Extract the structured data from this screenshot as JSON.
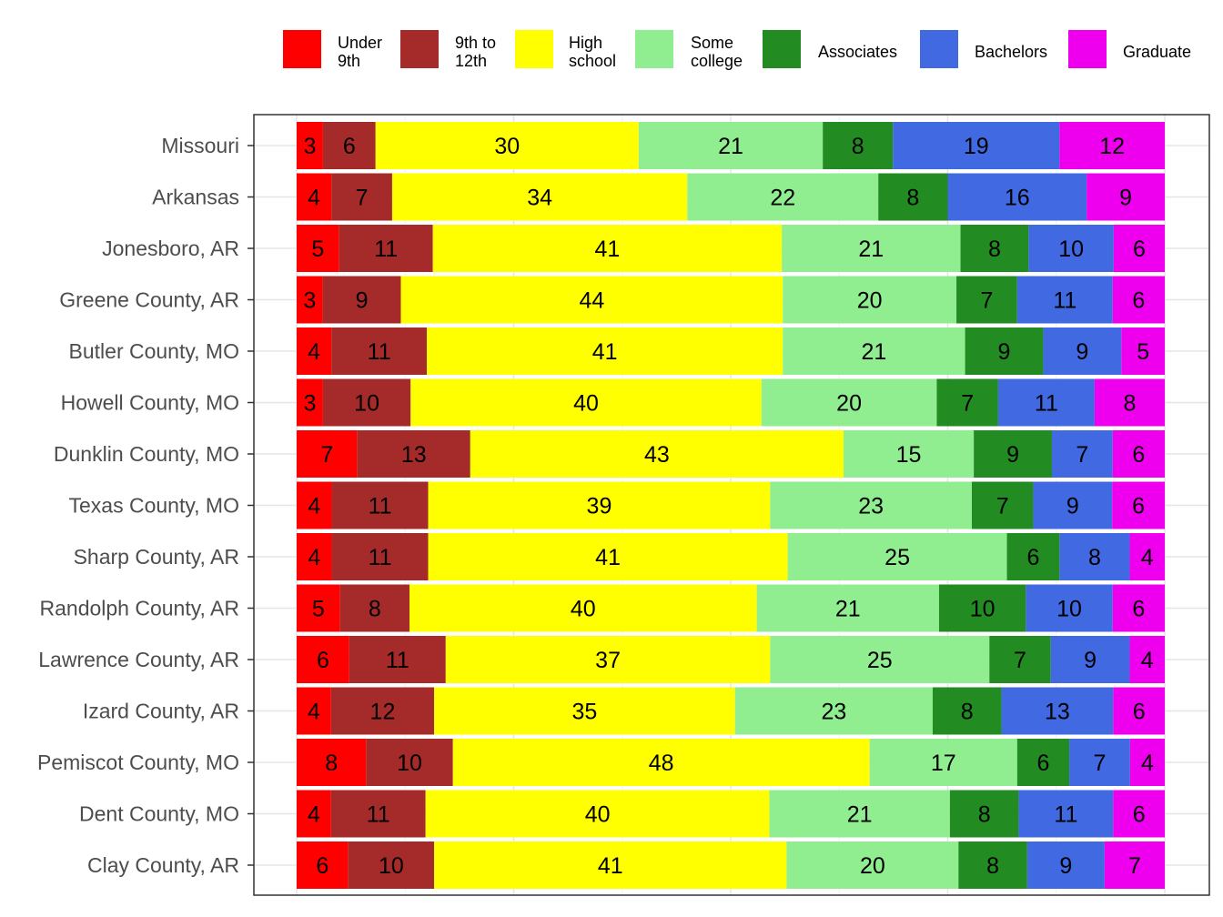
{
  "chart_data": {
    "type": "bar",
    "orientation": "horizontal",
    "stacked": true,
    "normalized_to_percent": true,
    "title": "",
    "xlabel": "",
    "ylabel": "",
    "legend_position": "top",
    "grid": true,
    "categories": [
      "Missouri",
      "Arkansas",
      "Jonesboro, AR",
      "Greene County, AR",
      "Butler County, MO",
      "Howell County, MO",
      "Dunklin County, MO",
      "Texas County, MO",
      "Sharp County, AR",
      "Randolph County, AR",
      "Lawrence County, AR",
      "Izard County, AR",
      "Pemiscot County, MO",
      "Dent County, MO",
      "Clay County, AR"
    ],
    "series": [
      {
        "name": "Under 9th",
        "legend_lines": [
          "Under",
          "9th"
        ],
        "color": "#ff0000",
        "values": [
          3,
          4,
          5,
          3,
          4,
          3,
          7,
          4,
          4,
          5,
          6,
          4,
          8,
          4,
          6
        ]
      },
      {
        "name": "9th to 12th",
        "legend_lines": [
          "9th to",
          "12th"
        ],
        "color": "#a52a2a",
        "values": [
          6,
          7,
          11,
          9,
          11,
          10,
          13,
          11,
          11,
          8,
          11,
          12,
          10,
          11,
          10
        ]
      },
      {
        "name": "High school",
        "legend_lines": [
          "High",
          "school"
        ],
        "color": "#ffff00",
        "values": [
          30,
          34,
          41,
          44,
          41,
          40,
          43,
          39,
          41,
          40,
          37,
          35,
          48,
          40,
          41
        ]
      },
      {
        "name": "Some college",
        "legend_lines": [
          "Some",
          "college"
        ],
        "color": "#90ee90",
        "values": [
          21,
          22,
          21,
          20,
          21,
          20,
          15,
          23,
          25,
          21,
          25,
          23,
          17,
          21,
          20
        ]
      },
      {
        "name": "Associates",
        "legend_lines": [
          "Associates"
        ],
        "color": "#228b22",
        "values": [
          8,
          8,
          8,
          7,
          9,
          7,
          9,
          7,
          6,
          10,
          7,
          8,
          6,
          8,
          8
        ]
      },
      {
        "name": "Bachelors",
        "legend_lines": [
          "Bachelors"
        ],
        "color": "#4169e1",
        "values": [
          19,
          16,
          10,
          11,
          9,
          11,
          7,
          9,
          8,
          10,
          9,
          13,
          7,
          11,
          9
        ]
      },
      {
        "name": "Graduate",
        "legend_lines": [
          "Graduate"
        ],
        "color": "#ee00ee",
        "values": [
          12,
          9,
          6,
          6,
          5,
          8,
          6,
          6,
          4,
          6,
          4,
          6,
          4,
          6,
          7
        ]
      }
    ]
  }
}
